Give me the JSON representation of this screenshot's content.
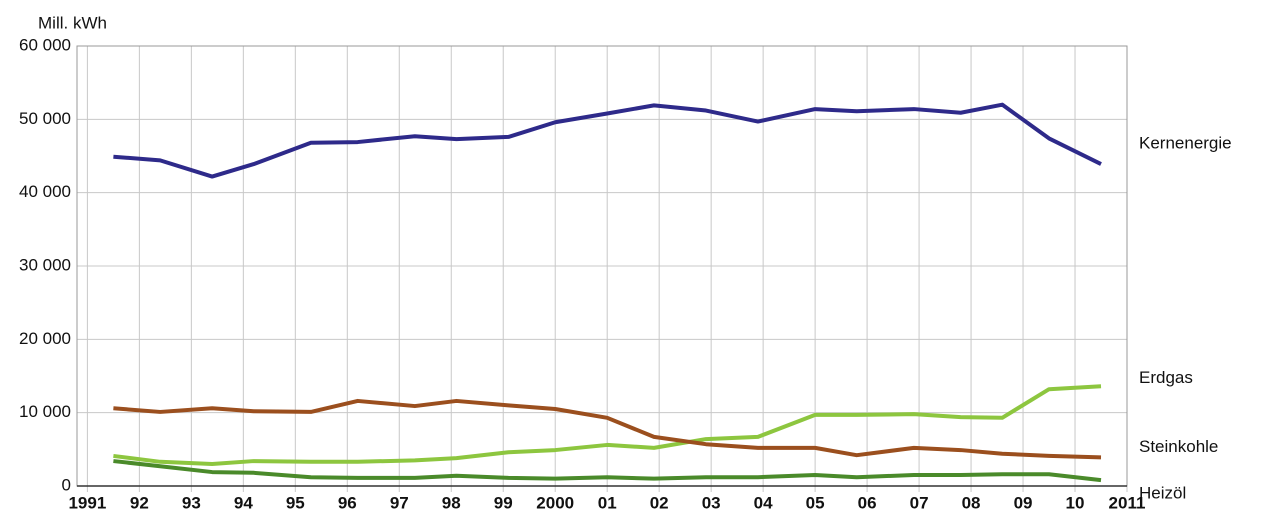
{
  "chart_data": {
    "type": "line",
    "y_label": "Mill. kWh",
    "x": [
      1991.5,
      1992.4,
      1993.4,
      1994.2,
      1995.3,
      1996.2,
      1997.3,
      1998.1,
      1999.1,
      2000.0,
      2001.0,
      2001.9,
      2002.9,
      2003.9,
      2005.0,
      2005.8,
      2006.9,
      2007.8,
      2008.6,
      2009.5,
      2010.5
    ],
    "series": [
      {
        "name": "Kernenergie",
        "color": "#2e2a8a",
        "values": [
          44900,
          44400,
          42200,
          43900,
          46800,
          46900,
          47700,
          47300,
          47600,
          49600,
          50800,
          51900,
          51200,
          49700,
          51400,
          51100,
          51400,
          50900,
          52000,
          47400,
          43900
        ]
      },
      {
        "name": "Erdgas",
        "color": "#8dc63f",
        "values": [
          4100,
          3300,
          3000,
          3400,
          3300,
          3300,
          3500,
          3800,
          4600,
          4900,
          5600,
          5200,
          6400,
          6700,
          9700,
          9700,
          9800,
          9400,
          9300,
          13200,
          13600
        ]
      },
      {
        "name": "Steinkohle",
        "color": "#9b4f1e",
        "values": [
          10600,
          10100,
          10600,
          10200,
          10100,
          11600,
          10900,
          11600,
          11000,
          10500,
          9300,
          6700,
          5700,
          5200,
          5200,
          4200,
          5200,
          4900,
          4400,
          4100,
          3900
        ]
      },
      {
        "name": "Heizöl",
        "color": "#4a8a2a",
        "values": [
          3400,
          2700,
          1900,
          1800,
          1200,
          1100,
          1100,
          1400,
          1100,
          1000,
          1200,
          1000,
          1200,
          1200,
          1500,
          1200,
          1500,
          1500,
          1600,
          1600,
          800
        ]
      }
    ],
    "xlim": [
      1990.8,
      2011
    ],
    "xticks": [
      1991,
      {
        "value": 1992,
        "label": "92"
      },
      {
        "value": 1993,
        "label": "93"
      },
      {
        "value": 1994,
        "label": "94"
      },
      {
        "value": 1995,
        "label": "95"
      },
      {
        "value": 1996,
        "label": "96"
      },
      {
        "value": 1997,
        "label": "97"
      },
      {
        "value": 1998,
        "label": "98"
      },
      {
        "value": 1999,
        "label": "99"
      },
      2000,
      {
        "value": 2001,
        "label": "01"
      },
      {
        "value": 2002,
        "label": "02"
      },
      {
        "value": 2003,
        "label": "03"
      },
      {
        "value": 2004,
        "label": "04"
      },
      {
        "value": 2005,
        "label": "05"
      },
      {
        "value": 2006,
        "label": "06"
      },
      {
        "value": 2007,
        "label": "07"
      },
      {
        "value": 2008,
        "label": "08"
      },
      {
        "value": 2009,
        "label": "09"
      },
      {
        "value": 2010,
        "label": "10"
      },
      2011
    ],
    "ylim": [
      0,
      60000
    ],
    "yticks": [
      0,
      {
        "value": 10000,
        "label": "10 000"
      },
      {
        "value": 20000,
        "label": "20 000"
      },
      {
        "value": 30000,
        "label": "30 000"
      },
      {
        "value": 40000,
        "label": "40 000"
      },
      {
        "value": 50000,
        "label": "50 000"
      },
      {
        "value": 60000,
        "label": "60 000"
      }
    ],
    "grid": true
  }
}
